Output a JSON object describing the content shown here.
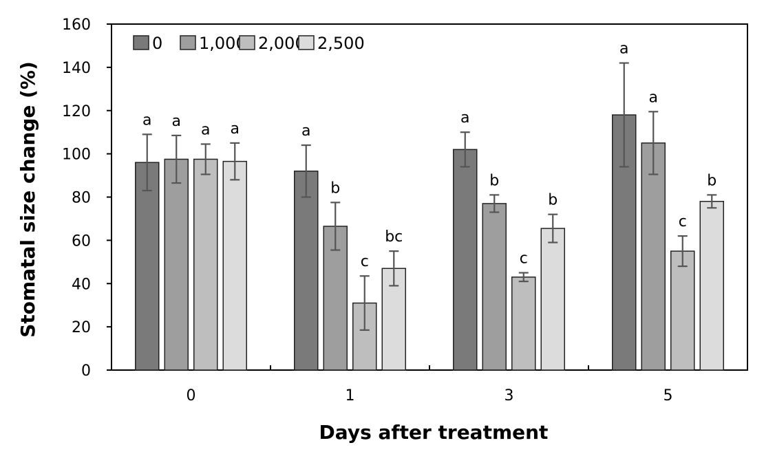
{
  "chart_data": {
    "type": "bar",
    "title": "",
    "xlabel": "Days after treatment",
    "ylabel": "Stomatal size change (%)",
    "ylim": [
      0,
      160
    ],
    "yticks": [
      0,
      20,
      40,
      60,
      80,
      100,
      120,
      140,
      160
    ],
    "categories": [
      "0",
      "1",
      "3",
      "5"
    ],
    "grid": false,
    "legend_position": "top-left",
    "series": [
      {
        "name": "0",
        "color": "#7a7a7a",
        "values": [
          96,
          92,
          102,
          118
        ],
        "errors": [
          13,
          12,
          8,
          24
        ],
        "labels": [
          "a",
          "a",
          "a",
          "a"
        ]
      },
      {
        "name": "1,000",
        "color": "#9e9e9e",
        "values": [
          97.5,
          66.5,
          77,
          105
        ],
        "errors": [
          11,
          11,
          4,
          14.5
        ],
        "labels": [
          "a",
          "b",
          "b",
          "a"
        ]
      },
      {
        "name": "2,000",
        "color": "#bebebe",
        "values": [
          97.5,
          31,
          43,
          55
        ],
        "errors": [
          7,
          12.5,
          2,
          7
        ],
        "labels": [
          "a",
          "c",
          "c",
          "c"
        ]
      },
      {
        "name": "2,500",
        "color": "#dcdcdc",
        "values": [
          96.5,
          47,
          65.5,
          78
        ],
        "errors": [
          8.5,
          8,
          6.5,
          3
        ],
        "labels": [
          "a",
          "bc",
          "b",
          "b"
        ]
      }
    ]
  }
}
